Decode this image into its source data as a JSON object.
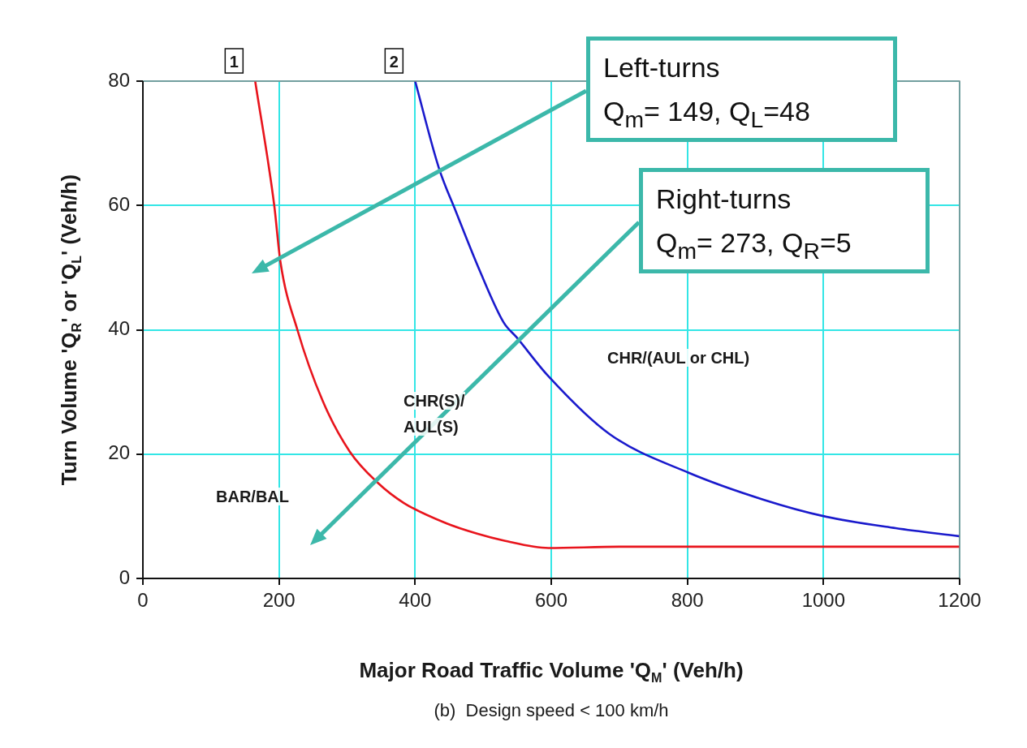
{
  "chart_data": {
    "type": "line",
    "xlabel": "Major Road Traffic Volume 'Q$_{M}$' (Veh/h)",
    "ylabel": "Turn Volume 'Q$_{R}$' or 'Q$_{L}$' (Veh/h)",
    "xlim": [
      0,
      1200
    ],
    "xticks": [
      0,
      200,
      400,
      600,
      800,
      1000,
      1200
    ],
    "ylim": [
      0,
      80
    ],
    "yticks": [
      0,
      20,
      40,
      60,
      80
    ],
    "grid": true,
    "marker": "none",
    "line_style": "solid",
    "series": [
      {
        "color": "#e8141c",
        "x": [
          165,
          193,
          202,
          227,
          264,
          304,
          345,
          384,
          445,
          491,
          530,
          596,
          700,
          900,
          1200
        ],
        "values": [
          80,
          60,
          51,
          40,
          28.6,
          20.4,
          15.4,
          12.1,
          8.9,
          7.2,
          6.1,
          4.9,
          5.1,
          5.1,
          5.1
        ]
      },
      {
        "color": "#1a1acc",
        "x": [
          400,
          435,
          460,
          495,
          530,
          549,
          596,
          686,
          802,
          911,
          1001,
          1106,
          1199
        ],
        "values": [
          80,
          66,
          59,
          49.5,
          41.2,
          38.8,
          32.5,
          23.2,
          17,
          12.7,
          10,
          8.1,
          6.8
        ]
      }
    ],
    "annotations": [
      {
        "text": "1",
        "x": 165,
        "y": 80
      },
      {
        "text": "2",
        "x": 400,
        "y": 80
      },
      "BAR/BAL",
      "CHR(S)/\nAUL(S)",
      "CHR/(AUL or CHL)",
      "Left-turns\nQ$_{m}$= 149, Q$_{L}$=48",
      "Right-turns\nQ$_{m}$= 273, Q$_{R}$=5",
      "(b)  Design speed < 100 km/h"
    ]
  }
}
